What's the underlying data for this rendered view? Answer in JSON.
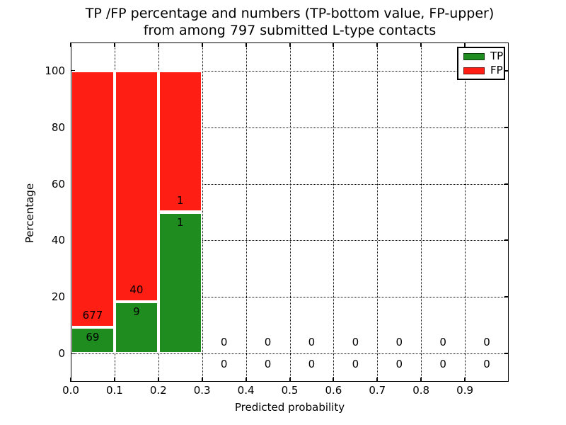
{
  "figure": {
    "title_line1": "TP /FP percentage and numbers (TP-bottom value, FP-upper)",
    "title_line2": "from among 797 submitted L-type contacts",
    "xlabel": "Predicted probability",
    "ylabel": "Percentage"
  },
  "legend": {
    "position": "upper right",
    "items": [
      {
        "label": "TP",
        "color": "#1e8c1e"
      },
      {
        "label": "FP",
        "color": "#ff1e14"
      }
    ]
  },
  "chart_data": {
    "type": "bar",
    "stacked": true,
    "title": "TP /FP percentage and numbers (TP-bottom value, FP-upper) from among 797 submitted L-type contacts",
    "xlabel": "Predicted probability",
    "ylabel": "Percentage",
    "total_contacts": 797,
    "xlim": [
      0.0,
      1.0
    ],
    "ylim": [
      -10,
      110
    ],
    "grid": true,
    "legend_position": "upper right",
    "x_ticks": [
      "0.0",
      "0.1",
      "0.2",
      "0.3",
      "0.4",
      "0.5",
      "0.6",
      "0.7",
      "0.8",
      "0.9"
    ],
    "y_ticks": [
      "0",
      "20",
      "40",
      "60",
      "80",
      "100"
    ],
    "bins": [
      [
        0.0,
        0.1
      ],
      [
        0.1,
        0.2
      ],
      [
        0.2,
        0.3
      ],
      [
        0.3,
        0.4
      ],
      [
        0.4,
        0.5
      ],
      [
        0.5,
        0.6
      ],
      [
        0.6,
        0.7
      ],
      [
        0.7,
        0.8
      ],
      [
        0.8,
        0.9
      ],
      [
        0.9,
        1.0
      ]
    ],
    "series": [
      {
        "name": "TP",
        "color": "#1e8c1e",
        "counts": [
          69,
          9,
          1,
          0,
          0,
          0,
          0,
          0,
          0,
          0
        ],
        "percent": [
          9.25,
          18.37,
          50.0,
          0,
          0,
          0,
          0,
          0,
          0,
          0
        ]
      },
      {
        "name": "FP",
        "color": "#ff1e14",
        "counts": [
          677,
          40,
          1,
          0,
          0,
          0,
          0,
          0,
          0,
          0
        ],
        "percent": [
          90.75,
          81.63,
          50.0,
          0,
          0,
          0,
          0,
          0,
          0,
          0
        ]
      }
    ]
  }
}
